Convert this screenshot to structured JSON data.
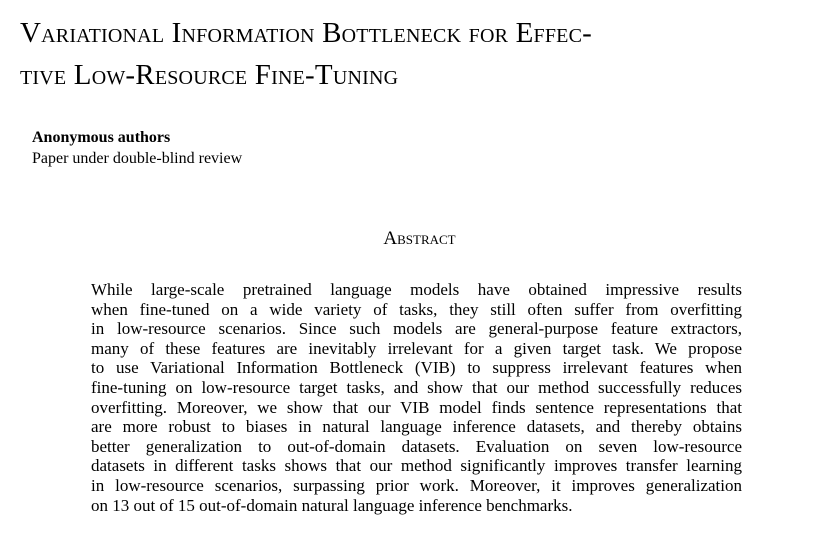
{
  "title": {
    "lines": [
      "Variational Information Bottleneck for Effec-",
      "tive Low-Resource Fine-Tuning"
    ]
  },
  "authors": {
    "name": "Anonymous authors",
    "affiliation": "Paper under double-blind review"
  },
  "abstract": {
    "heading": "Abstract",
    "lines": [
      "While large-scale pretrained language models have obtained impressive results",
      "when fine-tuned on a wide variety of tasks, they still often suffer from overfitting",
      "in low-resource scenarios. Since such models are general-purpose feature extractors,",
      "many of these features are inevitably irrelevant for a given target task. We propose",
      "to use Variational Information Bottleneck (VIB) to suppress irrelevant features when",
      "fine-tuning on low-resource target tasks, and show that our method successfully reduces",
      "overfitting. Moreover, we show that our VIB model finds sentence representations that",
      "are more robust to biases in natural language inference datasets, and thereby obtains",
      "better generalization to out-of-domain datasets. Evaluation on seven low-resource",
      "datasets in different tasks shows that our method significantly improves transfer learning",
      "in low-resource scenarios, surpassing prior work. Moreover, it improves generalization",
      "on 13 out of 15 out-of-domain natural language inference benchmarks."
    ]
  }
}
